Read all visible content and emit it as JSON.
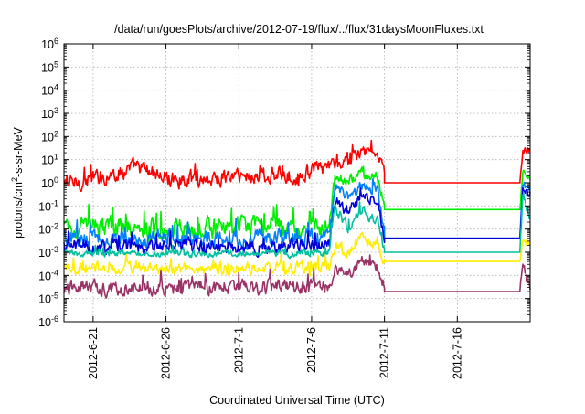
{
  "chart_data": {
    "type": "line",
    "title": "/data/run/goesPlots/archive/2012-07-19/flux/../flux/31daysMoonFluxes.txt",
    "xlabel": "Coordinated Universal Time (UTC)",
    "ylabel_parts": [
      "protons/cm",
      "2",
      "-s-sr-MeV"
    ],
    "yscale": "log",
    "ylim_exp": [
      -6,
      6
    ],
    "xlim_days": [
      "2012-06-19",
      "2012-07-21"
    ],
    "x_ticks": [
      {
        "label": "2012-6-21",
        "date": "2012-06-21"
      },
      {
        "label": "2012-6-26",
        "date": "2012-06-26"
      },
      {
        "label": "2012-7-1",
        "date": "2012-07-01"
      },
      {
        "label": "2012-7-6",
        "date": "2012-07-06"
      },
      {
        "label": "2012-7-11",
        "date": "2012-07-11"
      },
      {
        "label": "2012-7-16",
        "date": "2012-07-16"
      }
    ],
    "y_ticks": [
      {
        "base": "10",
        "exp": "6",
        "value_exp": 6
      },
      {
        "base": "10",
        "exp": "5",
        "value_exp": 5
      },
      {
        "base": "10",
        "exp": "4",
        "value_exp": 4
      },
      {
        "base": "10",
        "exp": "3",
        "value_exp": 3
      },
      {
        "base": "10",
        "exp": "2",
        "value_exp": 2
      },
      {
        "base": "10",
        "exp": "1",
        "value_exp": 1
      },
      {
        "base": "10",
        "exp": "0",
        "value_exp": 0
      },
      {
        "base": "10",
        "exp": "-1",
        "value_exp": -1
      },
      {
        "base": "10",
        "exp": "-2",
        "value_exp": -2
      },
      {
        "base": "10",
        "exp": "-3",
        "value_exp": -3
      },
      {
        "base": "10",
        "exp": "-4",
        "value_exp": -4
      },
      {
        "base": "10",
        "exp": "-5",
        "value_exp": -5
      },
      {
        "base": "10",
        "exp": "-6",
        "value_exp": -6
      }
    ],
    "grid": true,
    "series": [
      {
        "color": "#ff0000",
        "noise_base": 0.28,
        "noise_active": 0.2,
        "segments": [
          {
            "date": "2012-06-19",
            "value": 0.8
          },
          {
            "date": "2012-06-22",
            "value": 2
          },
          {
            "date": "2012-06-24",
            "value": 5
          },
          {
            "date": "2012-06-26",
            "value": 1.5
          },
          {
            "date": "2012-06-29",
            "value": 1.5
          },
          {
            "date": "2012-07-01",
            "value": 2
          },
          {
            "date": "2012-07-03",
            "value": 2
          },
          {
            "date": "2012-07-05",
            "value": 2
          },
          {
            "date": "2012-07-07",
            "value": 5
          },
          {
            "date": "2012-07-08",
            "value": 6
          },
          {
            "date": "2012-07-09",
            "value": 15
          },
          {
            "date": "2012-07-10",
            "value": 25
          },
          {
            "date": "2012-07-10.7",
            "value": 10
          },
          {
            "date": "2012-07-11",
            "value": 2
          }
        ],
        "flat_value": 1,
        "end_segments": [
          {
            "date": "2012-07-20.3",
            "value": 1
          },
          {
            "date": "2012-07-20.5",
            "value": 25
          },
          {
            "date": "2012-07-21",
            "value": 25
          }
        ]
      },
      {
        "color": "#00ee00",
        "noise_base": 0.35,
        "noise_active": 0.2,
        "segments": [
          {
            "date": "2012-06-19",
            "value": 0.012
          },
          {
            "date": "2012-07-07.2",
            "value": 0.012
          },
          {
            "date": "2012-07-07.6",
            "value": 2
          },
          {
            "date": "2012-07-08.5",
            "value": 1
          },
          {
            "date": "2012-07-09.5",
            "value": 3
          },
          {
            "date": "2012-07-10.5",
            "value": 2
          },
          {
            "date": "2012-07-11",
            "value": 0.08
          }
        ],
        "flat_value": 0.07,
        "end_segments": [
          {
            "date": "2012-07-20.3",
            "value": 0.07
          },
          {
            "date": "2012-07-20.5",
            "value": 3
          },
          {
            "date": "2012-07-21",
            "value": 1.5
          }
        ]
      },
      {
        "color": "#0080ff",
        "noise_base": 0.3,
        "noise_active": 0.2,
        "segments": [
          {
            "date": "2012-06-19",
            "value": 0.004
          },
          {
            "date": "2012-07-07.2",
            "value": 0.004
          },
          {
            "date": "2012-07-07.6",
            "value": 0.8
          },
          {
            "date": "2012-07-08.5",
            "value": 0.2
          },
          {
            "date": "2012-07-09.5",
            "value": 0.8
          },
          {
            "date": "2012-07-10.5",
            "value": 0.5
          },
          {
            "date": "2012-07-11",
            "value": 0.01
          }
        ],
        "flat_value": 0.004,
        "end_segments": [
          {
            "date": "2012-07-20.3",
            "value": 0.004
          },
          {
            "date": "2012-07-20.5",
            "value": 0.8
          },
          {
            "date": "2012-07-21",
            "value": 0.5
          }
        ]
      },
      {
        "color": "#0000dd",
        "noise_base": 0.25,
        "noise_active": 0.2,
        "segments": [
          {
            "date": "2012-06-19",
            "value": 0.0018
          },
          {
            "date": "2012-07-07.2",
            "value": 0.0018
          },
          {
            "date": "2012-07-07.6",
            "value": 0.2
          },
          {
            "date": "2012-07-08.5",
            "value": 0.05
          },
          {
            "date": "2012-07-09.5",
            "value": 0.3
          },
          {
            "date": "2012-07-10.5",
            "value": 0.15
          },
          {
            "date": "2012-07-11",
            "value": 0.004
          }
        ],
        "flat_value": 0.004,
        "end_segments": [
          {
            "date": "2012-07-20.3",
            "value": 0.004
          },
          {
            "date": "2012-07-20.5",
            "value": 0.6
          },
          {
            "date": "2012-07-21",
            "value": 0.3
          }
        ]
      },
      {
        "color": "#00c0a0",
        "noise_base": 0.12,
        "noise_active": 0.2,
        "segments": [
          {
            "date": "2012-06-19",
            "value": 0.0009
          },
          {
            "date": "2012-07-07.2",
            "value": 0.0009
          },
          {
            "date": "2012-07-07.6",
            "value": 0.1
          },
          {
            "date": "2012-07-08.5",
            "value": 0.01
          },
          {
            "date": "2012-07-09.5",
            "value": 0.05
          },
          {
            "date": "2012-07-10.5",
            "value": 0.02
          },
          {
            "date": "2012-07-11",
            "value": 0.0012
          }
        ],
        "flat_value": 0.001,
        "end_segments": [
          {
            "date": "2012-07-20.3",
            "value": 0.001
          },
          {
            "date": "2012-07-20.5",
            "value": 0.3
          },
          {
            "date": "2012-07-21",
            "value": 0.03
          }
        ]
      },
      {
        "color": "#ffee00",
        "noise_base": 0.2,
        "noise_active": 0.2,
        "segments": [
          {
            "date": "2012-06-19",
            "value": 0.0002
          },
          {
            "date": "2012-07-07.2",
            "value": 0.0002
          },
          {
            "date": "2012-07-07.6",
            "value": 0.002
          },
          {
            "date": "2012-07-08.5",
            "value": 0.001
          },
          {
            "date": "2012-07-09.5",
            "value": 0.006
          },
          {
            "date": "2012-07-10.5",
            "value": 0.002
          },
          {
            "date": "2012-07-11",
            "value": 0.0004
          }
        ],
        "flat_value": 0.0004,
        "end_segments": [
          {
            "date": "2012-07-20.3",
            "value": 0.0004
          },
          {
            "date": "2012-07-20.5",
            "value": 0.003
          },
          {
            "date": "2012-07-21",
            "value": 0.002
          }
        ]
      },
      {
        "color": "#993366",
        "noise_base": 0.25,
        "noise_active": 0.2,
        "segments": [
          {
            "date": "2012-06-19",
            "value": 3e-05
          },
          {
            "date": "2012-07-07.2",
            "value": 3e-05
          },
          {
            "date": "2012-07-07.6",
            "value": 0.0002
          },
          {
            "date": "2012-07-08.5",
            "value": 0.0001
          },
          {
            "date": "2012-07-09.5",
            "value": 0.0005
          },
          {
            "date": "2012-07-10.5",
            "value": 0.0002
          },
          {
            "date": "2012-07-11",
            "value": 4e-05
          }
        ],
        "flat_value": 2e-05,
        "end_segments": [
          {
            "date": "2012-07-20.3",
            "value": 2e-05
          },
          {
            "date": "2012-07-20.5",
            "value": 0.0003
          },
          {
            "date": "2012-07-21",
            "value": 3e-05
          }
        ]
      }
    ]
  }
}
